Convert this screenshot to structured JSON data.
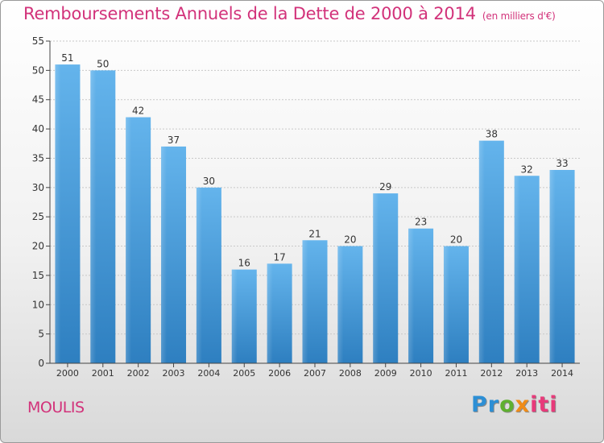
{
  "header": {
    "title": "Remboursements Annuels de la Dette de 2000 à 2014",
    "subtitle": "(en milliers d'€)"
  },
  "footer": {
    "commune": "MOULIS",
    "logo": "Proxiti"
  },
  "colors": {
    "title": "#d2327a",
    "bar_light": "#64b4ec",
    "bar_dark": "#2e7fc0",
    "grid": "#c8c8c8",
    "axis": "#444444"
  },
  "chart_data": {
    "type": "bar",
    "categories": [
      "2000",
      "2001",
      "2002",
      "2003",
      "2004",
      "2005",
      "2006",
      "2007",
      "2008",
      "2009",
      "2010",
      "2011",
      "2012",
      "2013",
      "2014"
    ],
    "values": [
      51,
      50,
      42,
      37,
      30,
      16,
      17,
      21,
      20,
      29,
      23,
      20,
      38,
      32,
      33
    ],
    "title": "Remboursements Annuels de la Dette de 2000 à 2014",
    "xlabel": "",
    "ylabel": "",
    "ylim": [
      0,
      55
    ],
    "yticks": [
      0,
      5,
      10,
      15,
      20,
      25,
      30,
      35,
      40,
      45,
      50,
      55
    ],
    "grid": true,
    "data_labels": true
  }
}
